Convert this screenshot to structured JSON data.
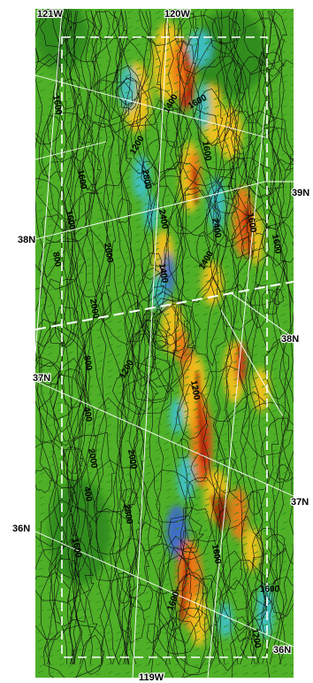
{
  "map": {
    "longitude_labels": [
      "121W",
      "120W",
      "119W"
    ],
    "latitude_labels": [
      "38N",
      "37N",
      "36N"
    ],
    "latitude_labels_right": [
      "39N",
      "38N",
      "37N",
      "36N"
    ],
    "contour_labels": [
      "1600",
      "1600",
      "1600",
      "1400",
      "1200",
      "1600",
      "1600",
      "2800",
      "2400",
      "800",
      "2000",
      "2000",
      "1400",
      "2400",
      "1600",
      "1600",
      "1400",
      "1200",
      "800",
      "2000",
      "1200",
      "400",
      "2000",
      "2800",
      "400",
      "1600",
      "1600",
      "1600",
      "1600",
      "1200"
    ],
    "colors": {
      "background_green": "#4fb028",
      "dark_green": "#2f8a1a",
      "yellow": "#f2c21a",
      "orange": "#ee7a16",
      "red": "#d22416",
      "dark_red": "#8a1208",
      "cyan": "#3fc0c8",
      "blue": "#3f6ad0",
      "contour_line": "#111111",
      "grid_line": "#ffffff",
      "domain_box": "#ffffff"
    }
  }
}
